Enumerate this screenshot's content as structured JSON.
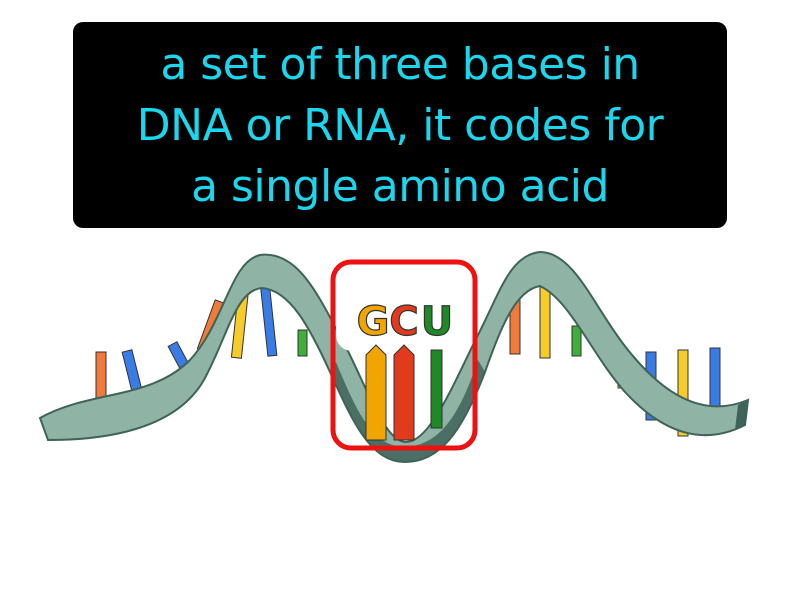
{
  "definition": {
    "lines": [
      "a set of three bases in",
      "DNA or RNA, it codes for",
      "a single amino acid"
    ],
    "text_color": "#1ad7ee",
    "background": "#000000"
  },
  "codon": {
    "letters": [
      {
        "char": "G",
        "color": "#f0a500"
      },
      {
        "char": "C",
        "color": "#e23a1c"
      },
      {
        "char": "U",
        "color": "#1f8a25"
      }
    ],
    "highlight_color": "#ee1111"
  },
  "strand": {
    "backbone_color": "#8fb3a5",
    "backbone_dark": "#3f6358",
    "base_colors": {
      "orange": "#f07a3a",
      "blue": "#3a7ce6",
      "yellow": "#f5cc2a",
      "green": "#3fae3a",
      "red": "#e23a1c",
      "darkgreen": "#1f8a25"
    }
  }
}
